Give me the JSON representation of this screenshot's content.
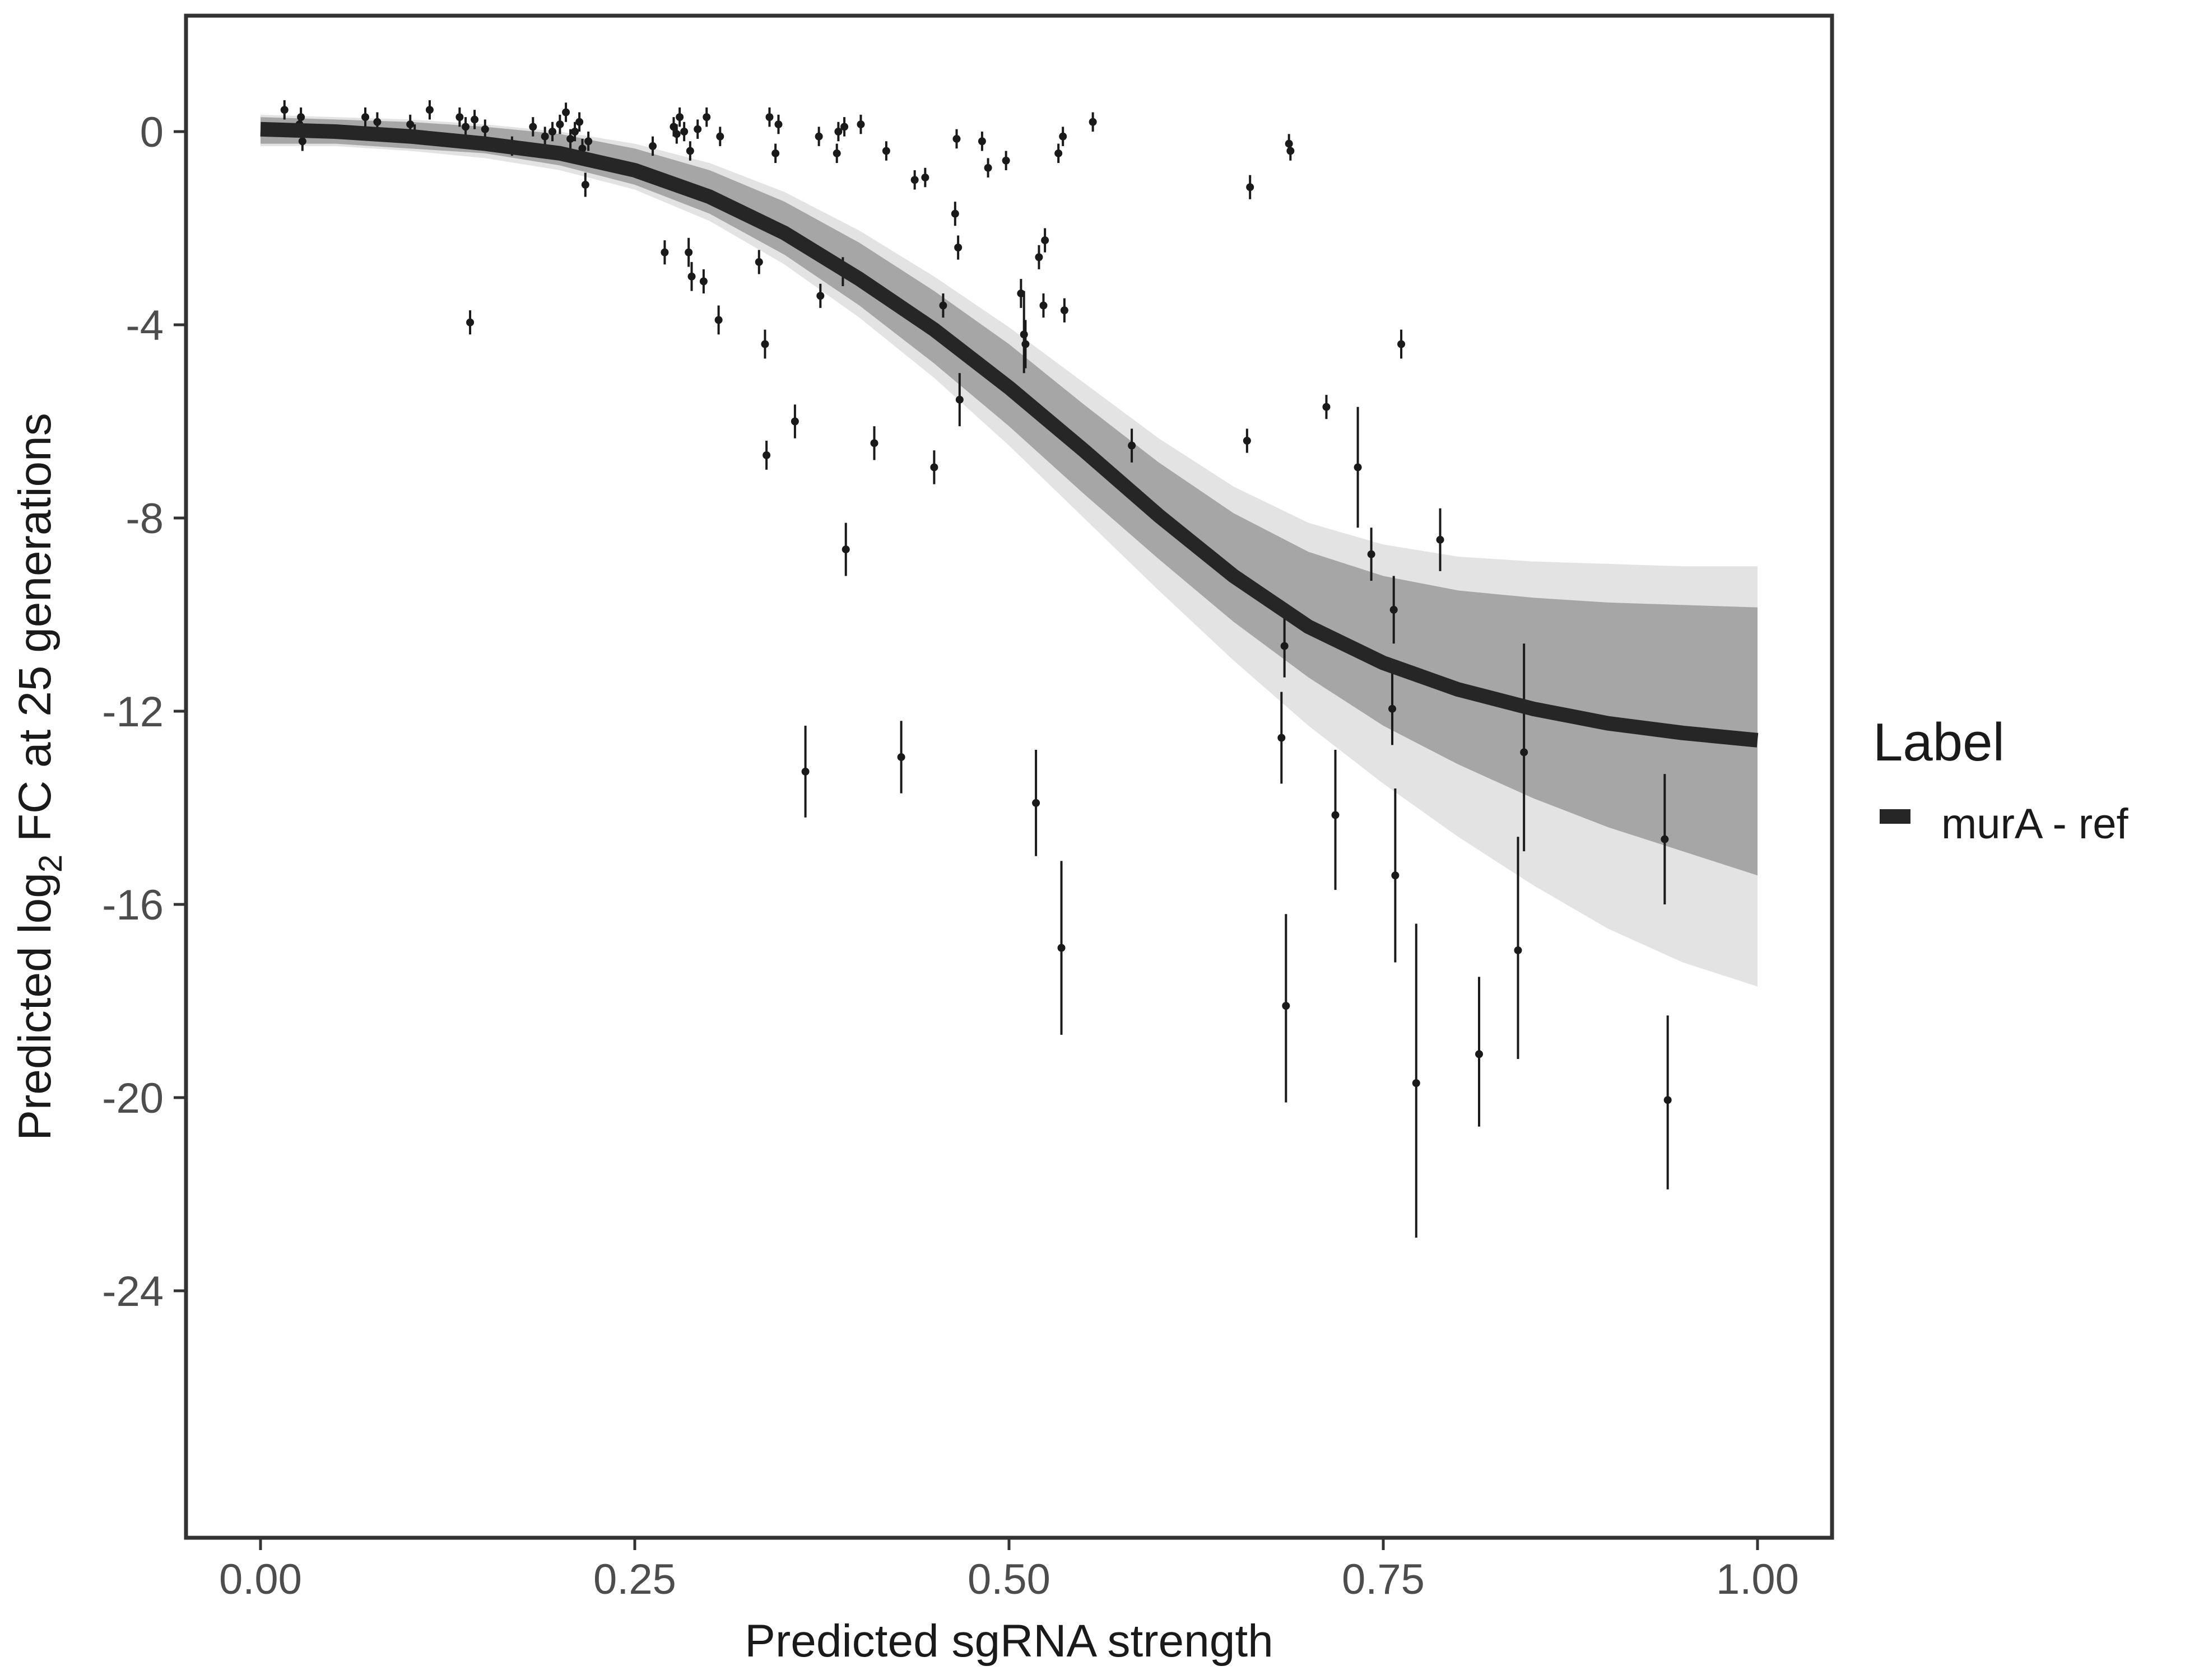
{
  "chart_data": {
    "type": "scatter",
    "title": "",
    "xlabel": "Predicted sgRNA strength",
    "ylabel_parts": [
      "Predicted  log",
      "2",
      " FC at 25 generations"
    ],
    "xlim": [
      -0.05,
      1.05
    ],
    "ylim": [
      -29.5,
      2.5
    ],
    "x_ticks": [
      0.0,
      0.25,
      0.5,
      0.75,
      1.0
    ],
    "x_tick_labels": [
      "0.00",
      "0.25",
      "0.50",
      "0.75",
      "1.00"
    ],
    "y_ticks": [
      0,
      -4,
      -8,
      -12,
      -16,
      -20,
      -24
    ],
    "y_tick_labels": [
      "0",
      "-4",
      "-8",
      "-12",
      "-16",
      "-20",
      "-24"
    ],
    "grid": false,
    "legend": {
      "title": "Label",
      "placement": "right",
      "entries": [
        {
          "label": "murA - ref",
          "color": "#262626"
        }
      ]
    },
    "fit_curve": {
      "name": "murA - ref",
      "color": "#262626",
      "x": [
        0.0,
        0.05,
        0.1,
        0.15,
        0.2,
        0.25,
        0.3,
        0.35,
        0.4,
        0.45,
        0.5,
        0.55,
        0.6,
        0.65,
        0.7,
        0.75,
        0.8,
        0.85,
        0.9,
        0.95,
        1.0
      ],
      "y": [
        0.05,
        0.0,
        -0.1,
        -0.25,
        -0.45,
        -0.8,
        -1.35,
        -2.1,
        -3.05,
        -4.1,
        -5.3,
        -6.6,
        -7.95,
        -9.2,
        -10.25,
        -11.0,
        -11.55,
        -11.95,
        -12.25,
        -12.45,
        -12.6
      ]
    },
    "posterior_band": {
      "color": "#a6a6a6",
      "x": [
        0.0,
        0.05,
        0.1,
        0.15,
        0.2,
        0.25,
        0.3,
        0.35,
        0.4,
        0.45,
        0.5,
        0.55,
        0.6,
        0.65,
        0.7,
        0.75,
        0.8,
        0.85,
        0.9,
        0.95,
        1.0
      ],
      "lower": [
        -0.25,
        -0.25,
        -0.35,
        -0.45,
        -0.7,
        -1.1,
        -1.7,
        -2.55,
        -3.6,
        -4.8,
        -6.1,
        -7.5,
        -8.85,
        -10.15,
        -11.3,
        -12.3,
        -13.1,
        -13.8,
        -14.4,
        -14.9,
        -15.4
      ],
      "upper": [
        0.3,
        0.25,
        0.2,
        0.1,
        -0.05,
        -0.35,
        -0.8,
        -1.45,
        -2.3,
        -3.3,
        -4.4,
        -5.65,
        -6.85,
        -7.9,
        -8.7,
        -9.2,
        -9.5,
        -9.65,
        -9.75,
        -9.8,
        -9.85
      ],
      "extreme_lower": [
        -0.3,
        -0.3,
        -0.4,
        -0.55,
        -0.8,
        -1.2,
        -1.85,
        -2.75,
        -3.85,
        -5.1,
        -6.5,
        -8.0,
        -9.5,
        -10.95,
        -12.3,
        -13.5,
        -14.6,
        -15.6,
        -16.5,
        -17.2,
        -17.7
      ],
      "extreme_upper": [
        0.35,
        0.3,
        0.25,
        0.15,
        0.0,
        -0.25,
        -0.65,
        -1.25,
        -2.05,
        -3.0,
        -4.05,
        -5.2,
        -6.35,
        -7.35,
        -8.1,
        -8.55,
        -8.8,
        -8.9,
        -8.95,
        -9.0,
        -9.0
      ]
    },
    "points": [
      {
        "x": 0.016,
        "y": 0.45,
        "lo": 0.25,
        "hi": 0.65
      },
      {
        "x": 0.026,
        "y": 0.15,
        "lo": -0.05,
        "hi": 0.35
      },
      {
        "x": 0.027,
        "y": 0.3,
        "lo": 0.1,
        "hi": 0.5
      },
      {
        "x": 0.028,
        "y": -0.2,
        "lo": -0.4,
        "hi": 0.0
      },
      {
        "x": 0.07,
        "y": 0.3,
        "lo": 0.1,
        "hi": 0.5
      },
      {
        "x": 0.078,
        "y": 0.2,
        "lo": 0.0,
        "hi": 0.4
      },
      {
        "x": 0.1,
        "y": 0.15,
        "lo": -0.05,
        "hi": 0.35
      },
      {
        "x": 0.103,
        "y": -0.05,
        "lo": -0.25,
        "hi": 0.15
      },
      {
        "x": 0.113,
        "y": 0.45,
        "lo": 0.25,
        "hi": 0.65
      },
      {
        "x": 0.133,
        "y": 0.3,
        "lo": 0.1,
        "hi": 0.5
      },
      {
        "x": 0.137,
        "y": 0.1,
        "lo": -0.1,
        "hi": 0.3
      },
      {
        "x": 0.14,
        "y": -3.95,
        "lo": -4.2,
        "hi": -3.7
      },
      {
        "x": 0.143,
        "y": 0.25,
        "lo": 0.05,
        "hi": 0.45
      },
      {
        "x": 0.15,
        "y": 0.05,
        "lo": -0.15,
        "hi": 0.25
      },
      {
        "x": 0.168,
        "y": -0.3,
        "lo": -0.5,
        "hi": -0.1
      },
      {
        "x": 0.182,
        "y": 0.1,
        "lo": -0.1,
        "hi": 0.3
      },
      {
        "x": 0.19,
        "y": -0.1,
        "lo": -0.3,
        "hi": 0.1
      },
      {
        "x": 0.195,
        "y": 0.0,
        "lo": -0.2,
        "hi": 0.2
      },
      {
        "x": 0.2,
        "y": 0.15,
        "lo": -0.05,
        "hi": 0.35
      },
      {
        "x": 0.204,
        "y": 0.4,
        "lo": 0.2,
        "hi": 0.6
      },
      {
        "x": 0.207,
        "y": -0.15,
        "lo": -0.35,
        "hi": 0.05
      },
      {
        "x": 0.21,
        "y": 0.0,
        "lo": -0.2,
        "hi": 0.2
      },
      {
        "x": 0.213,
        "y": 0.2,
        "lo": 0.0,
        "hi": 0.4
      },
      {
        "x": 0.215,
        "y": -0.35,
        "lo": -0.55,
        "hi": -0.15
      },
      {
        "x": 0.217,
        "y": -1.1,
        "lo": -1.35,
        "hi": -0.85
      },
      {
        "x": 0.219,
        "y": -0.2,
        "lo": -0.4,
        "hi": 0.0
      },
      {
        "x": 0.262,
        "y": -0.3,
        "lo": -0.5,
        "hi": -0.1
      },
      {
        "x": 0.27,
        "y": -2.5,
        "lo": -2.75,
        "hi": -2.25
      },
      {
        "x": 0.276,
        "y": 0.1,
        "lo": -0.1,
        "hi": 0.3
      },
      {
        "x": 0.278,
        "y": -0.05,
        "lo": -0.25,
        "hi": 0.15
      },
      {
        "x": 0.28,
        "y": 0.3,
        "lo": 0.1,
        "hi": 0.5
      },
      {
        "x": 0.283,
        "y": 0.0,
        "lo": -0.2,
        "hi": 0.2
      },
      {
        "x": 0.286,
        "y": -2.5,
        "lo": -2.8,
        "hi": -2.2
      },
      {
        "x": 0.287,
        "y": -0.4,
        "lo": -0.6,
        "hi": -0.2
      },
      {
        "x": 0.288,
        "y": -3.0,
        "lo": -3.3,
        "hi": -2.7
      },
      {
        "x": 0.292,
        "y": 0.05,
        "lo": -0.15,
        "hi": 0.25
      },
      {
        "x": 0.296,
        "y": -3.1,
        "lo": -3.35,
        "hi": -2.85
      },
      {
        "x": 0.298,
        "y": 0.3,
        "lo": 0.1,
        "hi": 0.5
      },
      {
        "x": 0.306,
        "y": -3.9,
        "lo": -4.2,
        "hi": -3.6
      },
      {
        "x": 0.307,
        "y": -0.1,
        "lo": -0.3,
        "hi": 0.1
      },
      {
        "x": 0.333,
        "y": -2.7,
        "lo": -2.95,
        "hi": -2.45
      },
      {
        "x": 0.337,
        "y": -4.4,
        "lo": -4.7,
        "hi": -4.1
      },
      {
        "x": 0.338,
        "y": -6.7,
        "lo": -7.0,
        "hi": -6.4
      },
      {
        "x": 0.34,
        "y": 0.3,
        "lo": 0.1,
        "hi": 0.5
      },
      {
        "x": 0.344,
        "y": -0.45,
        "lo": -0.65,
        "hi": -0.25
      },
      {
        "x": 0.346,
        "y": 0.15,
        "lo": -0.05,
        "hi": 0.35
      },
      {
        "x": 0.357,
        "y": -6.0,
        "lo": -6.35,
        "hi": -5.65
      },
      {
        "x": 0.364,
        "y": -13.25,
        "lo": -14.2,
        "hi": -12.3
      },
      {
        "x": 0.373,
        "y": -0.1,
        "lo": -0.3,
        "hi": 0.1
      },
      {
        "x": 0.374,
        "y": -3.4,
        "lo": -3.65,
        "hi": -3.15
      },
      {
        "x": 0.385,
        "y": -0.45,
        "lo": -0.65,
        "hi": -0.25
      },
      {
        "x": 0.386,
        "y": 0.0,
        "lo": -0.2,
        "hi": 0.2
      },
      {
        "x": 0.389,
        "y": -2.9,
        "lo": -3.2,
        "hi": -2.6
      },
      {
        "x": 0.39,
        "y": 0.1,
        "lo": -0.1,
        "hi": 0.3
      },
      {
        "x": 0.391,
        "y": -8.65,
        "lo": -9.2,
        "hi": -8.1
      },
      {
        "x": 0.401,
        "y": 0.15,
        "lo": -0.05,
        "hi": 0.35
      },
      {
        "x": 0.41,
        "y": -6.45,
        "lo": -6.8,
        "hi": -6.1
      },
      {
        "x": 0.418,
        "y": -0.4,
        "lo": -0.6,
        "hi": -0.2
      },
      {
        "x": 0.428,
        "y": -12.95,
        "lo": -13.7,
        "hi": -12.2
      },
      {
        "x": 0.437,
        "y": -1.0,
        "lo": -1.2,
        "hi": -0.8
      },
      {
        "x": 0.444,
        "y": -0.95,
        "lo": -1.15,
        "hi": -0.75
      },
      {
        "x": 0.45,
        "y": -6.95,
        "lo": -7.3,
        "hi": -6.6
      },
      {
        "x": 0.456,
        "y": -3.6,
        "lo": -3.85,
        "hi": -3.35
      },
      {
        "x": 0.464,
        "y": -1.7,
        "lo": -1.95,
        "hi": -1.45
      },
      {
        "x": 0.465,
        "y": -0.15,
        "lo": -0.35,
        "hi": 0.05
      },
      {
        "x": 0.466,
        "y": -2.4,
        "lo": -2.65,
        "hi": -2.15
      },
      {
        "x": 0.467,
        "y": -5.55,
        "lo": -6.1,
        "hi": -5.0
      },
      {
        "x": 0.482,
        "y": -0.2,
        "lo": -0.4,
        "hi": 0.0
      },
      {
        "x": 0.486,
        "y": -0.75,
        "lo": -0.95,
        "hi": -0.55
      },
      {
        "x": 0.498,
        "y": -0.6,
        "lo": -0.8,
        "hi": -0.4
      },
      {
        "x": 0.508,
        "y": -3.35,
        "lo": -3.65,
        "hi": -3.05
      },
      {
        "x": 0.51,
        "y": -4.2,
        "lo": -5.0,
        "hi": -3.3
      },
      {
        "x": 0.511,
        "y": -4.4,
        "lo": -4.9,
        "hi": -3.9
      },
      {
        "x": 0.518,
        "y": -13.9,
        "lo": -15.0,
        "hi": -12.8
      },
      {
        "x": 0.52,
        "y": -2.6,
        "lo": -2.85,
        "hi": -2.35
      },
      {
        "x": 0.523,
        "y": -3.6,
        "lo": -3.85,
        "hi": -3.35
      },
      {
        "x": 0.524,
        "y": -2.25,
        "lo": -2.5,
        "hi": -2.0
      },
      {
        "x": 0.533,
        "y": -0.45,
        "lo": -0.65,
        "hi": -0.25
      },
      {
        "x": 0.535,
        "y": -16.9,
        "lo": -18.7,
        "hi": -15.1
      },
      {
        "x": 0.536,
        "y": -0.1,
        "lo": -0.3,
        "hi": 0.1
      },
      {
        "x": 0.537,
        "y": -3.7,
        "lo": -3.95,
        "hi": -3.45
      },
      {
        "x": 0.556,
        "y": 0.2,
        "lo": 0.0,
        "hi": 0.4
      },
      {
        "x": 0.582,
        "y": -6.5,
        "lo": -6.85,
        "hi": -6.15
      },
      {
        "x": 0.659,
        "y": -6.4,
        "lo": -6.65,
        "hi": -6.15
      },
      {
        "x": 0.661,
        "y": -1.15,
        "lo": -1.4,
        "hi": -0.9
      },
      {
        "x": 0.682,
        "y": -12.55,
        "lo": -13.5,
        "hi": -11.6
      },
      {
        "x": 0.684,
        "y": -10.65,
        "lo": -11.3,
        "hi": -10.0
      },
      {
        "x": 0.685,
        "y": -18.1,
        "lo": -20.1,
        "hi": -16.2
      },
      {
        "x": 0.687,
        "y": -0.25,
        "lo": -0.45,
        "hi": -0.05
      },
      {
        "x": 0.688,
        "y": -0.4,
        "lo": -0.6,
        "hi": -0.2
      },
      {
        "x": 0.712,
        "y": -5.7,
        "lo": -5.95,
        "hi": -5.45
      },
      {
        "x": 0.718,
        "y": -14.15,
        "lo": -15.7,
        "hi": -12.8
      },
      {
        "x": 0.733,
        "y": -6.95,
        "lo": -8.2,
        "hi": -5.7
      },
      {
        "x": 0.742,
        "y": -8.75,
        "lo": -9.3,
        "hi": -8.2
      },
      {
        "x": 0.756,
        "y": -11.95,
        "lo": -12.7,
        "hi": -11.2
      },
      {
        "x": 0.757,
        "y": -9.9,
        "lo": -10.6,
        "hi": -9.2
      },
      {
        "x": 0.758,
        "y": -15.4,
        "lo": -17.2,
        "hi": -13.6
      },
      {
        "x": 0.762,
        "y": -4.4,
        "lo": -4.7,
        "hi": -4.1
      },
      {
        "x": 0.772,
        "y": -19.7,
        "lo": -22.9,
        "hi": -16.4
      },
      {
        "x": 0.788,
        "y": -8.45,
        "lo": -9.1,
        "hi": -7.8
      },
      {
        "x": 0.814,
        "y": -19.1,
        "lo": -20.6,
        "hi": -17.5
      },
      {
        "x": 0.84,
        "y": -16.95,
        "lo": -19.2,
        "hi": -14.6
      },
      {
        "x": 0.844,
        "y": -12.85,
        "lo": -14.9,
        "hi": -10.6
      },
      {
        "x": 0.938,
        "y": -14.65,
        "lo": -16.0,
        "hi": -13.3
      },
      {
        "x": 0.94,
        "y": -20.05,
        "lo": -21.9,
        "hi": -18.3
      }
    ]
  }
}
